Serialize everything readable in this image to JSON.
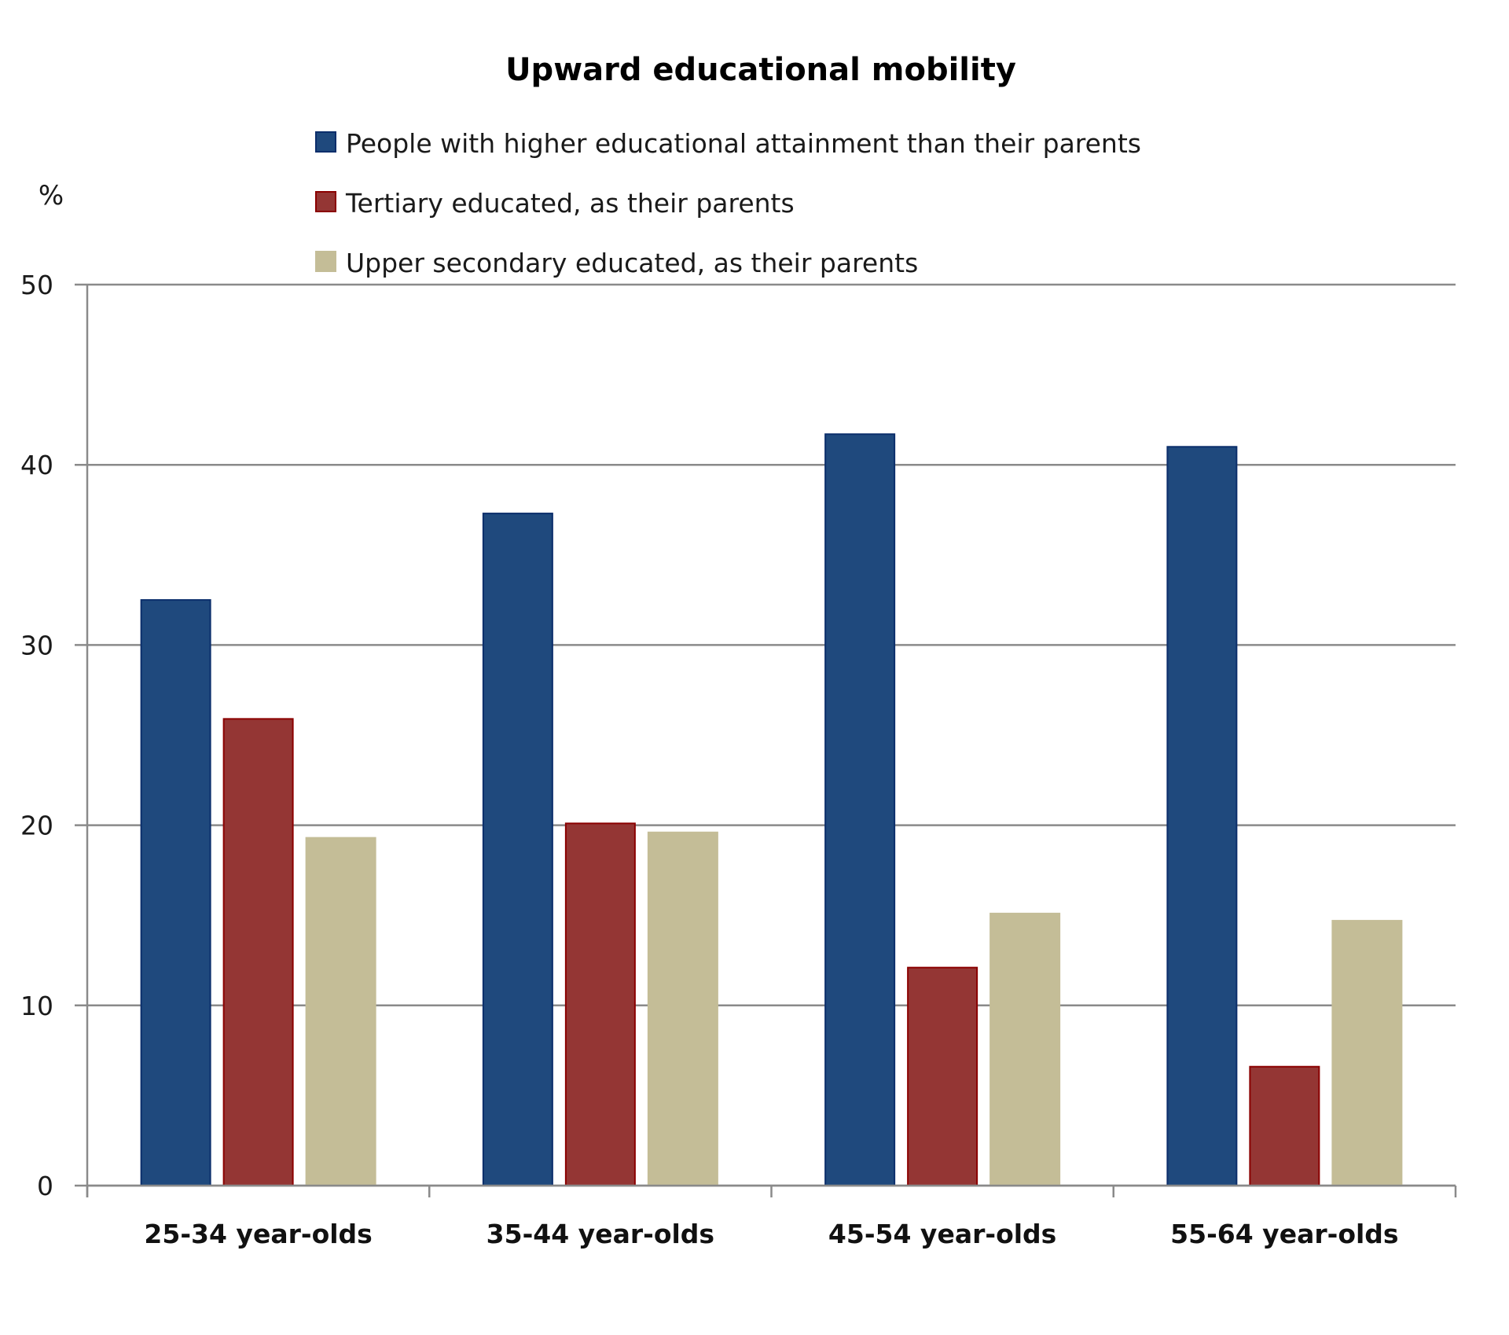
{
  "chart_data": {
    "type": "bar",
    "title": "Upward educational mobility",
    "xlabel": "",
    "ylabel": "%",
    "ylim": [
      0,
      50
    ],
    "yticks": [
      0,
      10,
      20,
      30,
      40,
      50
    ],
    "ytick_labels": [
      "0",
      "10",
      "20",
      "30",
      "40",
      "50"
    ],
    "grid": true,
    "legend_position": "top",
    "categories": [
      "25-34 year-olds",
      "35-44 year-olds",
      "45-54 year-olds",
      "55-64 year-olds"
    ],
    "series": [
      {
        "name": "People with higher educational attainment than their parents",
        "color": "#1F497D",
        "border": "#0B2E6B",
        "values": [
          32.5,
          37.3,
          41.7,
          41.0
        ]
      },
      {
        "name": "Tertiary educated, as their parents",
        "color": "#943634",
        "border": "#8B0000",
        "values": [
          25.9,
          20.1,
          12.1,
          6.6
        ]
      },
      {
        "name": "Upper secondary educated, as their parents",
        "color": "#C4BD97",
        "border": "#C4BD97",
        "values": [
          19.3,
          19.6,
          15.1,
          14.7
        ]
      }
    ]
  }
}
